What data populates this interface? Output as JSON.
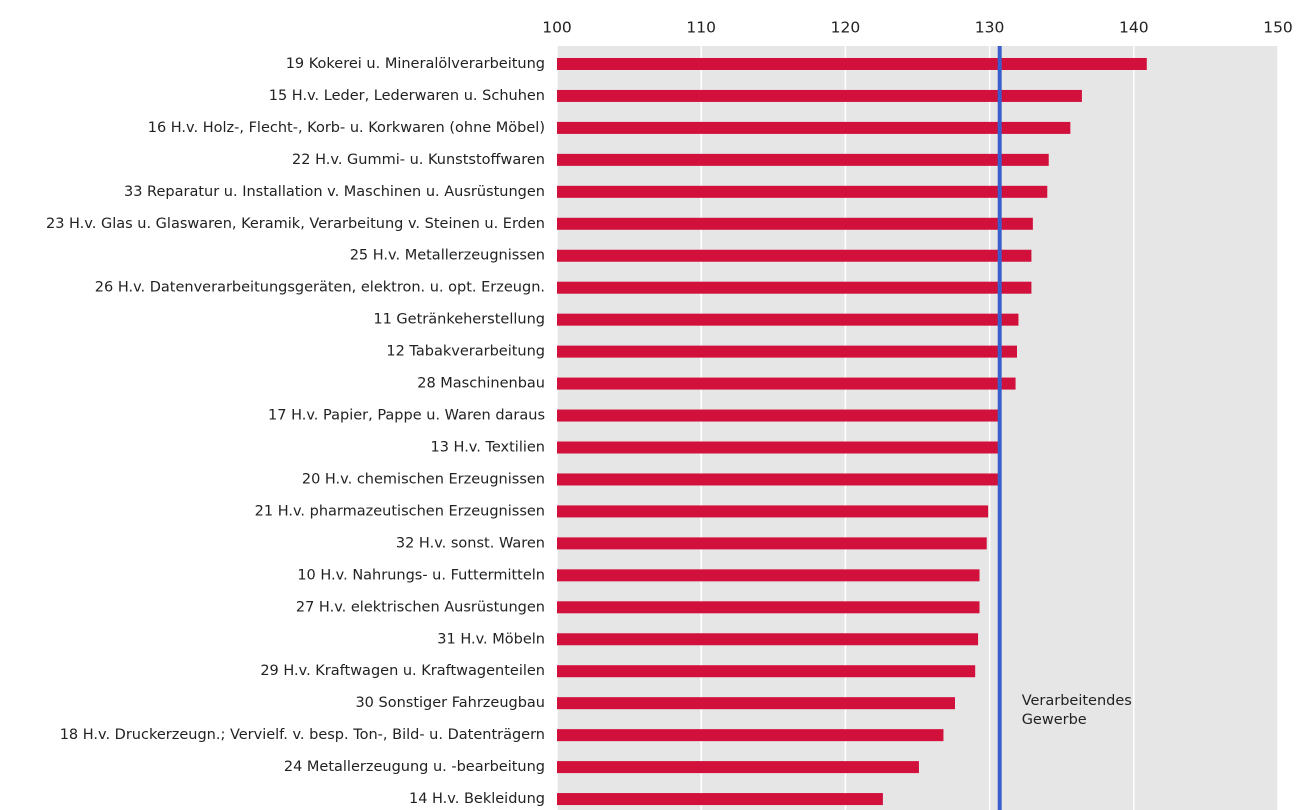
{
  "chart_data": {
    "type": "hbar",
    "categories": [
      "19  Kokerei u. Mineralölverarbeitung",
      "15  H.v. Leder, Lederwaren u. Schuhen",
      "16  H.v. Holz-, Flecht-, Korb- u. Korkwaren (ohne Möbel)",
      "22  H.v. Gummi- u. Kunststoffwaren",
      "33  Reparatur u. Installation v. Maschinen u. Ausrüstungen",
      "23  H.v. Glas u. Glaswaren, Keramik, Verarbeitung v. Steinen u. Erden",
      "25  H.v. Metallerzeugnissen",
      "26  H.v. Datenverarbeitungsgeräten, elektron. u. opt. Erzeugn.",
      "11  Getränkeherstellung",
      "12  Tabakverarbeitung",
      "28  Maschinenbau",
      "17  H.v. Papier, Pappe u. Waren daraus",
      "13  H.v. Textilien",
      "20  H.v. chemischen Erzeugnissen",
      "21  H.v. pharmazeutischen Erzeugnissen",
      "32  H.v. sonst. Waren",
      "10  H.v. Nahrungs- u. Futtermitteln",
      "27  H.v. elektrischen Ausrüstungen",
      "31  H.v. Möbeln",
      "29  H.v. Kraftwagen u. Kraftwagenteilen",
      "30  Sonstiger Fahrzeugbau",
      "18  H.v. Druckerzeugn.; Vervielf. v. besp. Ton-, Bild- u. Datenträgern",
      "24  Metallerzeugung u. -bearbeitung",
      "14  H.v. Bekleidung"
    ],
    "values": [
      140.9,
      136.4,
      135.6,
      134.1,
      134.0,
      133.0,
      132.9,
      132.9,
      132.0,
      131.9,
      131.8,
      130.6,
      130.6,
      130.6,
      129.9,
      129.8,
      129.3,
      129.3,
      129.2,
      129.0,
      127.6,
      126.8,
      125.1,
      122.6
    ],
    "color": "#d1103c",
    "xlim": [
      100,
      150
    ],
    "xticks": [
      100,
      110,
      120,
      130,
      140,
      150
    ],
    "grid": true,
    "reference": {
      "value": 130.7,
      "color": "#3a5fcd",
      "label": [
        "Verarbeitendes",
        "Gewerbe"
      ]
    }
  }
}
